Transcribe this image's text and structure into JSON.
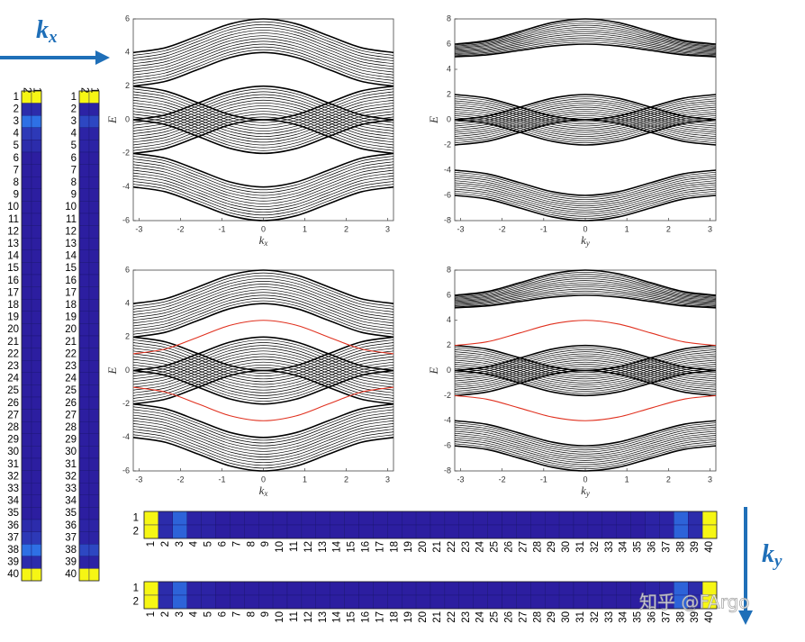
{
  "arrows": {
    "kx": {
      "main": "k",
      "sub": "x"
    },
    "ky": {
      "main": "k",
      "sub": "y"
    }
  },
  "heatmaps_vertical": [
    {
      "column_labels": [
        2,
        1
      ],
      "row_labels": [
        1,
        2,
        3,
        4,
        5,
        6,
        7,
        8,
        9,
        10,
        11,
        12,
        13,
        14,
        15,
        16,
        17,
        18,
        19,
        20,
        21,
        22,
        23,
        24,
        25,
        26,
        27,
        28,
        29,
        30,
        31,
        32,
        33,
        34,
        35,
        36,
        37,
        38,
        39,
        40
      ],
      "columns": [
        [
          1,
          0.05,
          0.3,
          0.1,
          0.05,
          0,
          0,
          0,
          0,
          0,
          0,
          0,
          0,
          0,
          0,
          0,
          0,
          0,
          0,
          0,
          0,
          0,
          0,
          0,
          0,
          0,
          0,
          0,
          0,
          0,
          0,
          0,
          0,
          0,
          0,
          0.05,
          0.1,
          0.3,
          0.05,
          1
        ],
        [
          1,
          0.05,
          0.3,
          0.1,
          0.05,
          0,
          0,
          0,
          0,
          0,
          0,
          0,
          0,
          0,
          0,
          0,
          0,
          0,
          0,
          0,
          0,
          0,
          0,
          0,
          0,
          0,
          0,
          0,
          0,
          0,
          0,
          0,
          0,
          0,
          0,
          0.05,
          0.1,
          0.3,
          0.05,
          1
        ]
      ]
    },
    {
      "column_labels": [
        2,
        1
      ],
      "row_labels": [
        1,
        2,
        3,
        4,
        5,
        6,
        7,
        8,
        9,
        10,
        11,
        12,
        13,
        14,
        15,
        16,
        17,
        18,
        19,
        20,
        21,
        22,
        23,
        24,
        25,
        26,
        27,
        28,
        29,
        30,
        31,
        32,
        33,
        34,
        35,
        36,
        37,
        38,
        39,
        40
      ],
      "columns": [
        [
          1,
          0.02,
          0.15,
          0.02,
          0.02,
          0,
          0,
          0,
          0,
          0,
          0,
          0,
          0,
          0,
          0,
          0,
          0,
          0,
          0,
          0,
          0,
          0,
          0,
          0,
          0,
          0,
          0,
          0,
          0,
          0,
          0,
          0,
          0,
          0,
          0,
          0.02,
          0.02,
          0.15,
          0.02,
          1
        ],
        [
          1,
          0.02,
          0.15,
          0.02,
          0.02,
          0,
          0,
          0,
          0,
          0,
          0,
          0,
          0,
          0,
          0,
          0,
          0,
          0,
          0,
          0,
          0,
          0,
          0,
          0,
          0,
          0,
          0,
          0,
          0,
          0,
          0,
          0,
          0,
          0,
          0,
          0.02,
          0.02,
          0.15,
          0.02,
          1
        ]
      ]
    }
  ],
  "chart_data": [
    {
      "type": "line",
      "x": [
        -3.14,
        -2.36,
        -1.57,
        -0.79,
        0,
        0.79,
        1.57,
        2.36,
        3.14
      ],
      "xlim": [
        -3.14,
        3.14
      ],
      "ylim": [
        -6,
        6
      ],
      "xticks": [
        -3,
        -2,
        -1,
        0,
        1,
        2,
        3
      ],
      "yticks": [
        -6,
        -4,
        -2,
        0,
        2,
        4,
        6
      ],
      "xlabel": {
        "main": "k",
        "sub": "x"
      },
      "ylabel": "E",
      "series": [
        {
          "color": "#000000",
          "values": [
            4,
            4.29,
            5,
            5.71,
            6,
            5.71,
            5,
            4.29,
            4
          ]
        },
        {
          "color": "#000000",
          "values": [
            2,
            2.29,
            3,
            3.71,
            4,
            3.71,
            3,
            2.29,
            2
          ]
        },
        {
          "color": "#000000",
          "values": [
            0,
            0.29,
            1,
            1.71,
            2,
            1.71,
            1,
            0.29,
            0
          ]
        },
        {
          "color": "#000000",
          "values": [
            -2,
            -1.71,
            -1,
            -0.29,
            0,
            -0.29,
            -1,
            -1.71,
            -2
          ]
        },
        {
          "color": "#000000",
          "values": [
            2,
            1.71,
            1,
            0.29,
            0,
            0.29,
            1,
            1.71,
            2
          ]
        },
        {
          "color": "#000000",
          "values": [
            0,
            -0.29,
            -1,
            -1.71,
            -2,
            -1.71,
            -1,
            -0.29,
            0
          ]
        },
        {
          "color": "#000000",
          "values": [
            -2,
            -2.29,
            -3,
            -3.71,
            -4,
            -3.71,
            -3,
            -2.29,
            -2
          ]
        },
        {
          "color": "#000000",
          "values": [
            -4,
            -4.29,
            -5,
            -5.71,
            -6,
            -5.71,
            -5,
            -4.29,
            -4
          ]
        }
      ]
    },
    {
      "type": "line",
      "x": [
        -3.14,
        -2.36,
        -1.57,
        -0.79,
        0,
        0.79,
        1.57,
        2.36,
        3.14
      ],
      "xlim": [
        -3.14,
        3.14
      ],
      "ylim": [
        -8,
        8
      ],
      "xticks": [
        -3,
        -2,
        -1,
        0,
        1,
        2,
        3
      ],
      "yticks": [
        -8,
        -6,
        -4,
        -2,
        0,
        2,
        4,
        6,
        8
      ],
      "xlabel": {
        "main": "k",
        "sub": "y"
      },
      "ylabel": "E",
      "series": [
        {
          "color": "#000000",
          "values": [
            6,
            6.29,
            7,
            7.71,
            8,
            7.71,
            7,
            6.29,
            6
          ]
        },
        {
          "color": "#000000",
          "values": [
            5,
            5.15,
            5.5,
            5.85,
            6,
            5.85,
            5.5,
            5.15,
            5
          ]
        },
        {
          "color": "#000000",
          "values": [
            0,
            0.29,
            1,
            1.71,
            2,
            1.71,
            1,
            0.29,
            0
          ]
        },
        {
          "color": "#000000",
          "values": [
            -2,
            -1.71,
            -1,
            -0.29,
            0,
            -0.29,
            -1,
            -1.71,
            -2
          ]
        },
        {
          "color": "#000000",
          "values": [
            2,
            1.71,
            1,
            0.29,
            0,
            0.29,
            1,
            1.71,
            2
          ]
        },
        {
          "color": "#000000",
          "values": [
            0,
            -0.29,
            -1,
            -1.71,
            -2,
            -1.71,
            -1,
            -0.29,
            0
          ]
        },
        {
          "color": "#000000",
          "values": [
            -4,
            -4.29,
            -5,
            -5.71,
            -6,
            -5.71,
            -5,
            -4.29,
            -4
          ]
        },
        {
          "color": "#000000",
          "values": [
            -6,
            -6.29,
            -7,
            -7.71,
            -8,
            -7.71,
            -7,
            -6.29,
            -6
          ]
        }
      ]
    },
    {
      "type": "line",
      "x": [
        -3.14,
        -2.36,
        -1.57,
        -0.79,
        0,
        0.79,
        1.57,
        2.36,
        3.14
      ],
      "xlim": [
        -3.14,
        3.14
      ],
      "ylim": [
        -6,
        6
      ],
      "xticks": [
        -3,
        -2,
        -1,
        0,
        1,
        2,
        3
      ],
      "yticks": [
        -6,
        -4,
        -2,
        0,
        2,
        4,
        6
      ],
      "xlabel": {
        "main": "k",
        "sub": "x"
      },
      "ylabel": "E",
      "series": [
        {
          "color": "#000000",
          "values": [
            4,
            4.29,
            5,
            5.71,
            6,
            5.71,
            5,
            4.29,
            4
          ]
        },
        {
          "color": "#000000",
          "values": [
            2,
            2.29,
            3,
            3.71,
            4,
            3.71,
            3,
            2.29,
            2
          ]
        },
        {
          "color": "#000000",
          "values": [
            0,
            0.29,
            1,
            1.71,
            2,
            1.71,
            1,
            0.29,
            0
          ]
        },
        {
          "color": "#000000",
          "values": [
            -2,
            -1.71,
            -1,
            -0.29,
            0,
            -0.29,
            -1,
            -1.71,
            -2
          ]
        },
        {
          "color": "#000000",
          "values": [
            2,
            1.71,
            1,
            0.29,
            0,
            0.29,
            1,
            1.71,
            2
          ]
        },
        {
          "color": "#000000",
          "values": [
            0,
            -0.29,
            -1,
            -1.71,
            -2,
            -1.71,
            -1,
            -0.29,
            0
          ]
        },
        {
          "color": "#000000",
          "values": [
            -2,
            -2.29,
            -3,
            -3.71,
            -4,
            -3.71,
            -3,
            -2.29,
            -2
          ]
        },
        {
          "color": "#000000",
          "values": [
            -4,
            -4.29,
            -5,
            -5.71,
            -6,
            -5.71,
            -5,
            -4.29,
            -4
          ]
        },
        {
          "color": "#e0301e",
          "values": [
            1,
            1.29,
            2,
            2.71,
            3,
            2.71,
            2,
            1.29,
            1
          ]
        },
        {
          "color": "#e0301e",
          "values": [
            -1,
            -1.29,
            -2,
            -2.71,
            -3,
            -2.71,
            -2,
            -1.29,
            -1
          ]
        }
      ]
    },
    {
      "type": "line",
      "x": [
        -3.14,
        -2.36,
        -1.57,
        -0.79,
        0,
        0.79,
        1.57,
        2.36,
        3.14
      ],
      "xlim": [
        -3.14,
        3.14
      ],
      "ylim": [
        -8,
        8
      ],
      "xticks": [
        -3,
        -2,
        -1,
        0,
        1,
        2,
        3
      ],
      "yticks": [
        -8,
        -6,
        -4,
        -2,
        0,
        2,
        4,
        6,
        8
      ],
      "xlabel": {
        "main": "k",
        "sub": "y"
      },
      "ylabel": "E",
      "series": [
        {
          "color": "#000000",
          "values": [
            6,
            6.29,
            7,
            7.71,
            8,
            7.71,
            7,
            6.29,
            6
          ]
        },
        {
          "color": "#000000",
          "values": [
            5,
            5.15,
            5.5,
            5.85,
            6,
            5.85,
            5.5,
            5.15,
            5
          ]
        },
        {
          "color": "#000000",
          "values": [
            0,
            0.29,
            1,
            1.71,
            2,
            1.71,
            1,
            0.29,
            0
          ]
        },
        {
          "color": "#000000",
          "values": [
            -2,
            -1.71,
            -1,
            -0.29,
            0,
            -0.29,
            -1,
            -1.71,
            -2
          ]
        },
        {
          "color": "#000000",
          "values": [
            2,
            1.71,
            1,
            0.29,
            0,
            0.29,
            1,
            1.71,
            2
          ]
        },
        {
          "color": "#000000",
          "values": [
            0,
            -0.29,
            -1,
            -1.71,
            -2,
            -1.71,
            -1,
            -0.29,
            0
          ]
        },
        {
          "color": "#000000",
          "values": [
            -4,
            -4.29,
            -5,
            -5.71,
            -6,
            -5.71,
            -5,
            -4.29,
            -4
          ]
        },
        {
          "color": "#000000",
          "values": [
            -6,
            -6.29,
            -7,
            -7.71,
            -8,
            -7.71,
            -7,
            -6.29,
            -6
          ]
        },
        {
          "color": "#e0301e",
          "values": [
            2,
            2.29,
            3,
            3.71,
            4,
            3.71,
            3,
            2.29,
            2
          ]
        },
        {
          "color": "#e0301e",
          "values": [
            -2,
            -2.29,
            -3,
            -3.71,
            -4,
            -3.71,
            -3,
            -2.29,
            -2
          ]
        }
      ]
    }
  ],
  "heatmaps_horizontal": [
    {
      "row_labels": [
        1,
        2
      ],
      "column_labels": [
        1,
        2,
        3,
        4,
        5,
        6,
        7,
        8,
        9,
        10,
        11,
        12,
        13,
        14,
        15,
        16,
        17,
        18,
        19,
        20,
        21,
        22,
        23,
        24,
        25,
        26,
        27,
        28,
        29,
        30,
        31,
        32,
        33,
        34,
        35,
        36,
        37,
        38,
        39,
        40
      ],
      "rows": [
        [
          1,
          0.05,
          0.25,
          0.02,
          0.02,
          0,
          0,
          0,
          0,
          0,
          0,
          0,
          0,
          0,
          0,
          0,
          0,
          0,
          0,
          0,
          0,
          0,
          0,
          0,
          0,
          0,
          0,
          0,
          0,
          0,
          0,
          0,
          0,
          0,
          0,
          0.02,
          0.02,
          0.25,
          0.05,
          1
        ],
        [
          1,
          0.05,
          0.25,
          0.02,
          0.02,
          0,
          0,
          0,
          0,
          0,
          0,
          0,
          0,
          0,
          0,
          0,
          0,
          0,
          0,
          0,
          0,
          0,
          0,
          0,
          0,
          0,
          0,
          0,
          0,
          0,
          0,
          0,
          0,
          0,
          0,
          0.02,
          0.02,
          0.25,
          0.05,
          1
        ]
      ]
    },
    {
      "row_labels": [
        1,
        2
      ],
      "column_labels": [
        1,
        2,
        3,
        4,
        5,
        6,
        7,
        8,
        9,
        10,
        11,
        12,
        13,
        14,
        15,
        16,
        17,
        18,
        19,
        20,
        21,
        22,
        23,
        24,
        25,
        26,
        27,
        28,
        29,
        30,
        31,
        32,
        33,
        34,
        35,
        36,
        37,
        38,
        39,
        40
      ],
      "rows": [
        [
          1,
          0.05,
          0.25,
          0.02,
          0.02,
          0,
          0,
          0,
          0,
          0,
          0,
          0,
          0,
          0,
          0,
          0,
          0,
          0,
          0,
          0,
          0,
          0,
          0,
          0,
          0,
          0,
          0,
          0,
          0,
          0,
          0,
          0,
          0,
          0,
          0,
          0.02,
          0.02,
          0.25,
          0.05,
          1
        ],
        [
          1,
          0.05,
          0.25,
          0.02,
          0.02,
          0,
          0,
          0,
          0,
          0,
          0,
          0,
          0,
          0,
          0,
          0,
          0,
          0,
          0,
          0,
          0,
          0,
          0,
          0,
          0,
          0,
          0,
          0,
          0,
          0,
          0,
          0,
          0,
          0,
          0,
          0.02,
          0.02,
          0.25,
          0.05,
          1
        ]
      ]
    }
  ],
  "watermark": "知乎 @FArgo"
}
